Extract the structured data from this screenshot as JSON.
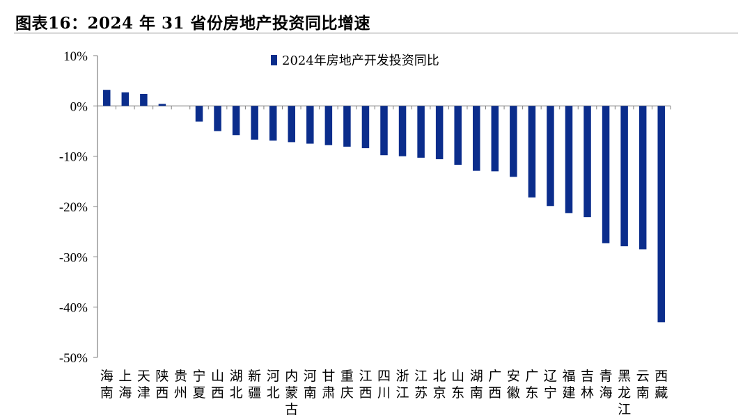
{
  "figure_title": "图表16：2024 年 31 省份房地产投资同比增速",
  "chart_data": {
    "type": "bar",
    "series": [
      {
        "name": "2024年房地产开发投资同比",
        "color": "#0b2d8c",
        "values": [
          3.2,
          2.7,
          2.4,
          0.4,
          0.0,
          -3.1,
          -5.0,
          -5.8,
          -6.7,
          -6.9,
          -7.2,
          -7.5,
          -7.8,
          -8.1,
          -8.4,
          -9.8,
          -10.0,
          -10.3,
          -10.6,
          -11.7,
          -12.9,
          -13.0,
          -14.1,
          -18.2,
          -19.9,
          -21.3,
          -22.1,
          -27.3,
          -27.9,
          -28.5,
          -43.0
        ]
      }
    ],
    "categories": [
      "海南",
      "上海",
      "天津",
      "陕西",
      "贵州",
      "宁夏",
      "山西",
      "湖北",
      "新疆",
      "河北",
      "内蒙古",
      "河南",
      "甘肃",
      "重庆",
      "江西",
      "四川",
      "浙江",
      "江苏",
      "北京",
      "山东",
      "湖南",
      "广西",
      "安徽",
      "广东",
      "辽宁",
      "福建",
      "吉林",
      "青海",
      "黑龙江",
      "云南",
      "西藏"
    ],
    "ylim": [
      -50,
      10
    ],
    "yticks": [
      10,
      0,
      -10,
      -20,
      -30,
      -40,
      -50
    ],
    "ytick_labels": [
      "10%",
      "0%",
      "-10%",
      "-20%",
      "-30%",
      "-40%",
      "-50%"
    ],
    "legend_position": "top-center",
    "grid": false,
    "title": "",
    "xlabel": "",
    "ylabel": ""
  }
}
